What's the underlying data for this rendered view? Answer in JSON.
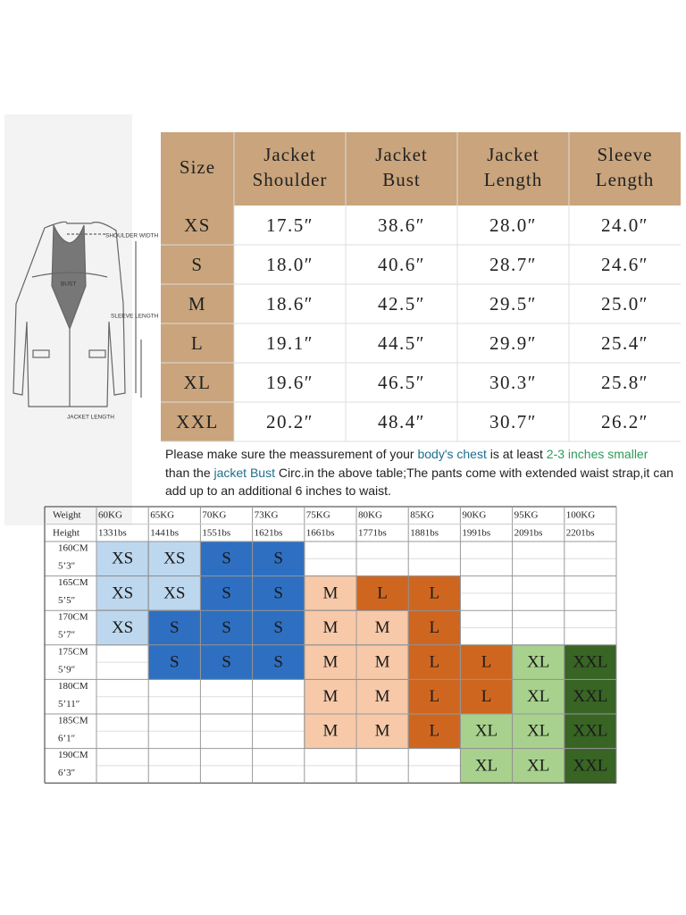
{
  "diagram": {
    "labels": [
      "SHOULDER WIDTH",
      "BUST",
      "SLEEVE LENGTH",
      "JACKET LENGTH"
    ]
  },
  "size_table": {
    "header": [
      [
        "Size"
      ],
      [
        "Jacket",
        "Shoulder"
      ],
      [
        "Jacket",
        "Bust"
      ],
      [
        "Jacket",
        "Length"
      ],
      [
        "Sleeve",
        "Length"
      ]
    ],
    "rows": [
      [
        "XS",
        "17.5″",
        "38.6″",
        "28.0″",
        "24.0″"
      ],
      [
        "S",
        "18.0″",
        "40.6″",
        "28.7″",
        "24.6″"
      ],
      [
        "M",
        "18.6″",
        "42.5″",
        "29.5″",
        "25.0″"
      ],
      [
        "L",
        "19.1″",
        "44.5″",
        "29.9″",
        "25.4″"
      ],
      [
        "XL",
        "19.6″",
        "46.5″",
        "30.3″",
        "25.8″"
      ],
      [
        "XXL",
        "20.2″",
        "48.4″",
        "30.7″",
        "26.2″"
      ]
    ]
  },
  "note": [
    {
      "text": "Please make sure the meassurement of your ",
      "color": "#222222"
    },
    {
      "text": "body's chest",
      "color": "#1f6e8c"
    },
    {
      "text": " is at least ",
      "color": "#222222"
    },
    {
      "text": "2-3 inches smaller",
      "color": "#2e9a5c"
    },
    {
      "text": " than the ",
      "color": "#222222"
    },
    {
      "text": "jacket Bust",
      "color": "#1f6e8c"
    },
    {
      "text": " Circ.in the above table;The pants come with extended waist strap,it can add up to an additional 6 inches to waist.",
      "color": "#222222"
    }
  ],
  "fit_grid": {
    "corner": [
      "Weight",
      "Height"
    ],
    "weights": [
      [
        "60KG",
        "1331bs"
      ],
      [
        "65KG",
        "1441bs"
      ],
      [
        "70KG",
        "1551bs"
      ],
      [
        "73KG",
        "1621bs"
      ],
      [
        "75KG",
        "1661bs"
      ],
      [
        "80KG",
        "1771bs"
      ],
      [
        "85KG",
        "1881bs"
      ],
      [
        "90KG",
        "1991bs"
      ],
      [
        "95KG",
        "2091bs"
      ],
      [
        "100KG",
        "2201bs"
      ]
    ],
    "heights": [
      [
        "160CM",
        "5’3″"
      ],
      [
        "165CM",
        "5’5″"
      ],
      [
        "170CM",
        "5’7″"
      ],
      [
        "175CM",
        "5’9″"
      ],
      [
        "180CM",
        "5’11″"
      ],
      [
        "185CM",
        "6’1″"
      ],
      [
        "190CM",
        "6’3″"
      ]
    ],
    "cells": [
      [
        "XS",
        "XS",
        "S",
        "S",
        null,
        null,
        null,
        null,
        null,
        null
      ],
      [
        "XS",
        "XS",
        "S",
        "S",
        "M",
        "L",
        "L",
        null,
        null,
        null
      ],
      [
        "XS",
        "S",
        "S",
        "S",
        "M",
        "M",
        "L",
        null,
        null,
        null
      ],
      [
        null,
        "S",
        "S",
        "S",
        "M",
        "M",
        "L",
        "L",
        "XL",
        "XXL"
      ],
      [
        null,
        null,
        null,
        null,
        "M",
        "M",
        "L",
        "L",
        "XL",
        "XXL"
      ],
      [
        null,
        null,
        null,
        null,
        "M",
        "M",
        "L",
        "XL",
        "XL",
        "XXL"
      ],
      [
        null,
        null,
        null,
        null,
        null,
        null,
        null,
        "XL",
        "XL",
        "XXL"
      ]
    ],
    "size_colors": {
      "XS": "#bdd7ee",
      "S": "#2e6fc1",
      "M": "#f7c9a9",
      "L": "#cf6620",
      "XL": "#a8d18d",
      "XXL": "#386424"
    }
  }
}
